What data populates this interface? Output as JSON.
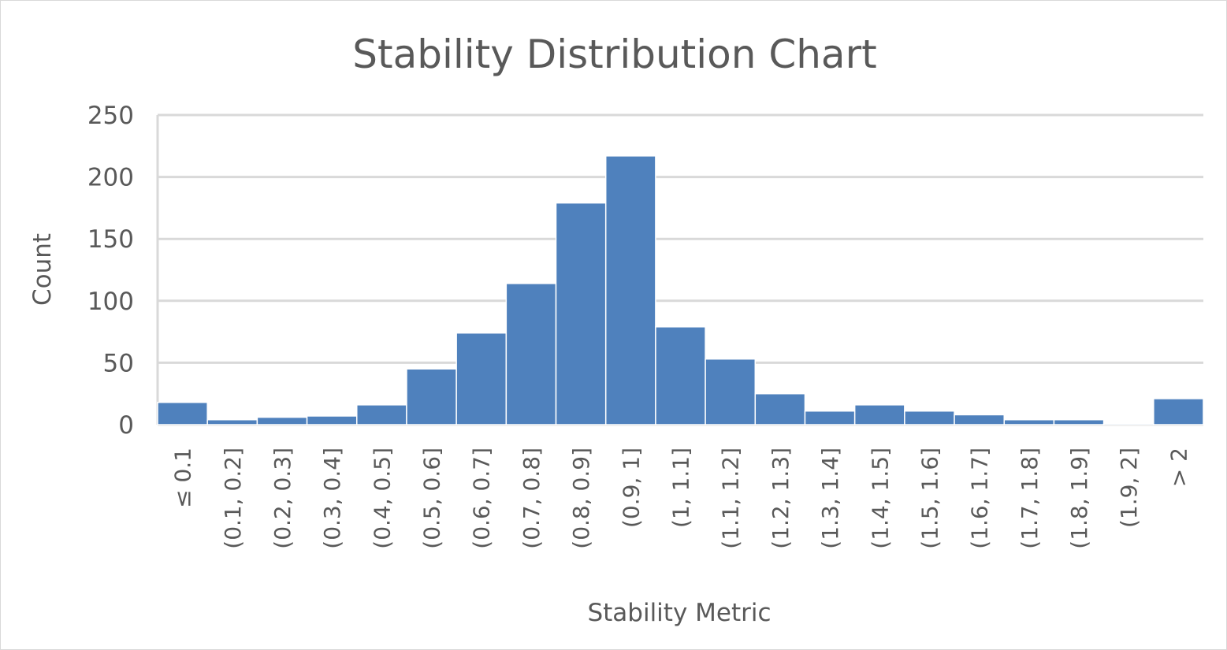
{
  "chart_data": {
    "type": "bar",
    "title": "Stability Distribution Chart",
    "xlabel": "Stability Metric",
    "ylabel": "Count",
    "ylim": [
      0,
      250
    ],
    "yticks": [
      "0",
      "50",
      "100",
      "150",
      "200",
      "250"
    ],
    "grid": true,
    "bar_color": "#4f81bd",
    "categories": [
      "≤ 0.1",
      "(0.1, 0.2]",
      "(0.2, 0.3]",
      "(0.3, 0.4]",
      "(0.4, 0.5]",
      "(0.5, 0.6]",
      "(0.6, 0.7]",
      "(0.7, 0.8]",
      "(0.8, 0.9]",
      "(0.9, 1]",
      "(1, 1.1]",
      "(1.1, 1.2]",
      "(1.2, 1.3]",
      "(1.3, 1.4]",
      "(1.4, 1.5]",
      "(1.5, 1.6]",
      "(1.6, 1.7]",
      "(1.7, 1.8]",
      "(1.8, 1.9]",
      "(1.9, 2]",
      "> 2"
    ],
    "values": [
      18,
      4,
      6,
      7,
      16,
      45,
      74,
      114,
      179,
      217,
      79,
      53,
      25,
      11,
      16,
      11,
      8,
      4,
      4,
      1,
      21
    ]
  }
}
